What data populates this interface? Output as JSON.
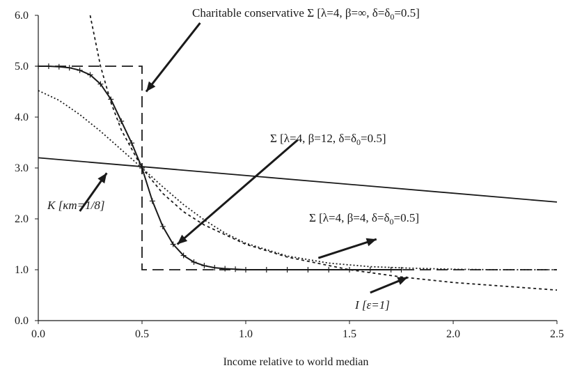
{
  "chart_data": {
    "type": "line",
    "title": "",
    "xlabel": "Income relative to world median",
    "ylabel": "",
    "xlim": [
      0,
      2.5
    ],
    "ylim": [
      0,
      6
    ],
    "grid": false,
    "x_ticks": [
      "0.0",
      "0.5",
      "1.0",
      "1.5",
      "2.0",
      "2.5"
    ],
    "y_ticks": [
      "0.0",
      "1.0",
      "2.0",
      "3.0",
      "4.0",
      "5.0",
      "6.0"
    ],
    "series": [
      {
        "style": "dashed-long",
        "color": "#1a1a1a",
        "x": [
          0,
          0.5,
          0.5,
          0.5,
          0.5,
          0.75,
          1.0,
          1.25,
          1.5,
          1.75,
          2.0,
          2.25,
          2.5
        ],
        "y": [
          5.0,
          5.0,
          3.0,
          1.0,
          1.0,
          1.0,
          1.0,
          1.0,
          1.0,
          1.0,
          1.0,
          1.0,
          1.0
        ]
      },
      {
        "style": "solid-crosses",
        "color": "#1a1a1a",
        "x": [
          0.0,
          0.05,
          0.1,
          0.15,
          0.2,
          0.25,
          0.3,
          0.35,
          0.4,
          0.45,
          0.5,
          0.55,
          0.6,
          0.65,
          0.7,
          0.75,
          0.8,
          0.85,
          0.9,
          0.95,
          1.0,
          1.1,
          1.2,
          1.3,
          1.4,
          1.5,
          1.6,
          1.7,
          1.75
        ],
        "y": [
          5.0,
          5.0,
          4.99,
          4.97,
          4.92,
          4.83,
          4.65,
          4.35,
          3.92,
          3.49,
          3.0,
          2.35,
          1.85,
          1.5,
          1.28,
          1.15,
          1.08,
          1.04,
          1.02,
          1.01,
          1.0,
          1.0,
          1.0,
          1.0,
          1.0,
          1.0,
          1.0,
          1.0,
          1.0
        ]
      },
      {
        "style": "dotted",
        "color": "#1a1a1a",
        "x": [
          0.0,
          0.1,
          0.2,
          0.3,
          0.4,
          0.5,
          0.6,
          0.7,
          0.8,
          0.9,
          1.0,
          1.2,
          1.4,
          1.6,
          1.8,
          2.0,
          2.2,
          2.5
        ],
        "y": [
          4.52,
          4.33,
          4.05,
          3.72,
          3.36,
          3.0,
          2.63,
          2.28,
          1.98,
          1.72,
          1.52,
          1.27,
          1.13,
          1.06,
          1.03,
          1.01,
          1.0,
          1.0
        ]
      },
      {
        "style": "solid",
        "color": "#1a1a1a",
        "x": [
          0.0,
          2.5
        ],
        "y": [
          3.2,
          2.33
        ]
      },
      {
        "style": "dashed-short",
        "color": "#1a1a1a",
        "x": [
          0.25,
          0.3,
          0.35,
          0.4,
          0.5,
          0.6,
          0.7,
          0.8,
          1.0,
          1.2,
          1.5,
          1.75,
          2.0,
          2.5
        ],
        "y": [
          6.0,
          5.0,
          4.29,
          3.75,
          3.0,
          2.5,
          2.14,
          1.88,
          1.5,
          1.25,
          1.0,
          0.857,
          0.75,
          0.6
        ]
      }
    ],
    "annotations": [
      {
        "text": "Charitable conservative Σ [λ=4, β=∞, δ=δ",
        "sub": "0",
        "tail": "=0.5]"
      },
      {
        "text": "Σ [λ=4, β=12, δ=δ",
        "sub": "0",
        "tail": "=0.5]"
      },
      {
        "text": "Σ [λ=4, β=4, δ=δ",
        "sub": "0",
        "tail": "=0.5]"
      },
      {
        "text": "K [κm=1/8]"
      },
      {
        "text": "I [ε=1]"
      }
    ]
  }
}
